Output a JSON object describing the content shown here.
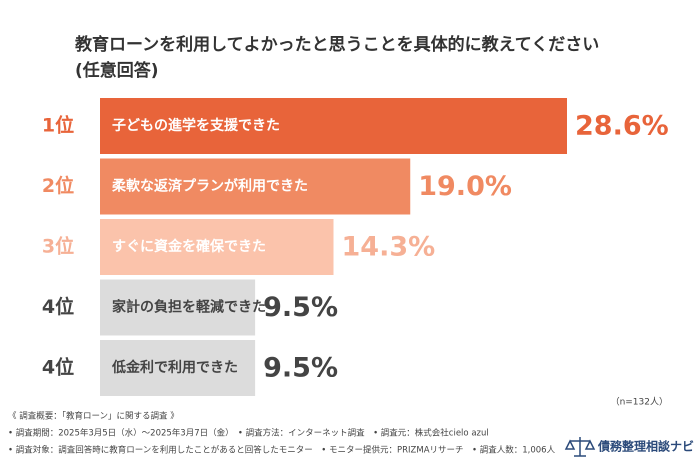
{
  "chart_data": {
    "type": "bar",
    "title": "教育ローンを利用してよかったと思うことを具体的に教えてください",
    "subtitle": "(任意回答)",
    "ranks": [
      "1位",
      "2位",
      "3位",
      "4位",
      "4位"
    ],
    "categories": [
      "子どもの進学を支援できた",
      "柔軟な返済プランが利用できた",
      "すぐに資金を確保できた",
      "家計の負担を軽減できた",
      "低金利で利用できた"
    ],
    "values": [
      28.6,
      19.0,
      14.3,
      9.5,
      9.5
    ],
    "value_labels": [
      "28.6%",
      "19.0%",
      "14.3%",
      "9.5%",
      "9.5%"
    ],
    "colors": [
      "#e8643a",
      "#f08a62",
      "#fbc3ab",
      "#dcdcdc",
      "#dcdcdc"
    ],
    "label_colors": [
      "#e8643a",
      "#f08a62",
      "#f6b095",
      "#444444",
      "#444444"
    ],
    "bar_text_colors": [
      "#ffffff",
      "#ffffff",
      "#ffffff",
      "#444444",
      "#444444"
    ],
    "sample": "（n=132人）"
  },
  "notes": [
    "《 調査概要：「教育ローン」に関する調査 》",
    "• 調査期間：2025年3月5日（水）～2025年3月7日（金）　• 調査方法：インターネット調査　• 調査元：株式会社cielo azul",
    "• 調査対象：調査回答時に教育ローンを利用したことがあると回答したモニター　• モニター提供元：PRIZMAリサーチ　• 調査人数：1,006人"
  ],
  "logo": "債務整理相談ナビ"
}
